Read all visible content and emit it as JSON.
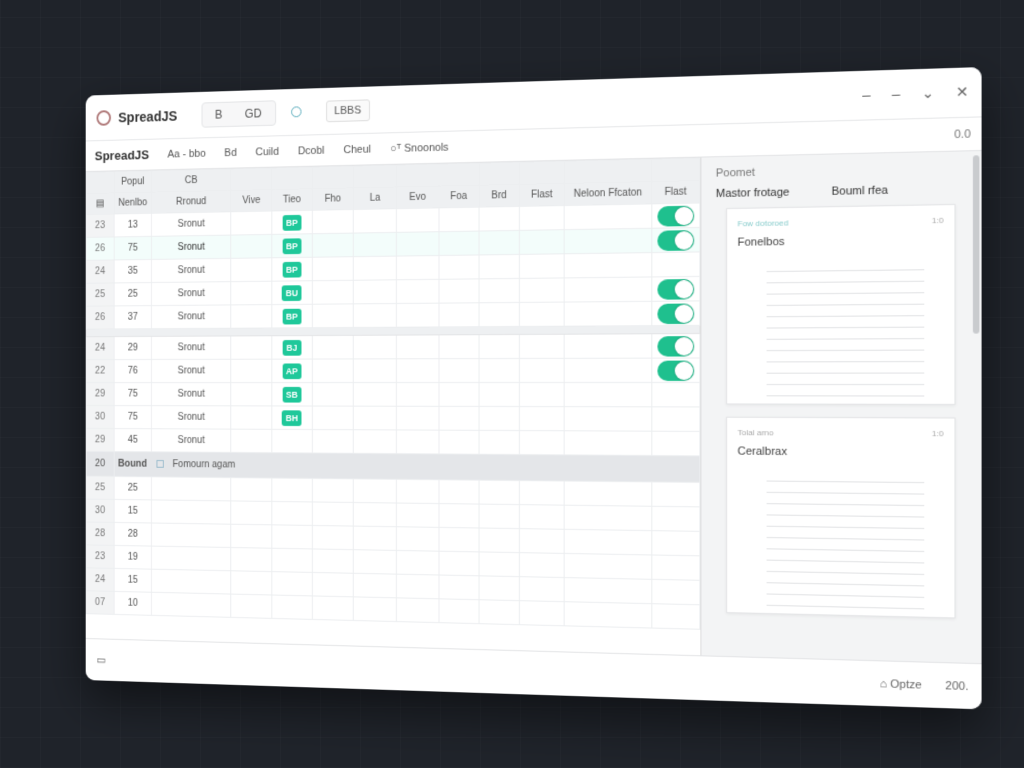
{
  "app": {
    "title": "SpreadJS",
    "toolbar": [
      "B",
      "GD"
    ],
    "button": "LBBS",
    "window_controls": [
      "–",
      "–",
      "⌄",
      "✕"
    ]
  },
  "menu": {
    "brand": "SpreadJS",
    "items": [
      "Aa - bbo",
      "Bd",
      "Cuild",
      "Dcobl",
      "Cheul",
      "○ᵀ Snoonols"
    ],
    "right": "0.0"
  },
  "grid": {
    "group_header": [
      "",
      "Popul",
      "CB"
    ],
    "columns": [
      "▤",
      "Nenlbo",
      "Rronud",
      "Vive",
      "Tieo",
      "Fho",
      "La",
      "Evo",
      "Foa",
      "Brd",
      "Flast",
      "Neloon Ffcaton",
      "Flast"
    ],
    "rows1": [
      {
        "n": "23",
        "a": "13",
        "b": "Sronut",
        "badge": "BP",
        "toggle": true
      },
      {
        "n": "26",
        "a": "75",
        "b": "Sronut",
        "badge": "BP",
        "toggle": true,
        "selected": true
      },
      {
        "n": "24",
        "a": "35",
        "b": "Sronut",
        "badge": "BP",
        "toggle": false
      },
      {
        "n": "25",
        "a": "25",
        "b": "Sronut",
        "badge": "BU",
        "toggle": true
      },
      {
        "n": "26",
        "a": "37",
        "b": "Sronut",
        "badge": "BP",
        "toggle": true
      }
    ],
    "rows2": [
      {
        "n": "24",
        "a": "29",
        "b": "Sronut",
        "badge": "BJ",
        "toggle": true
      },
      {
        "n": "22",
        "a": "76",
        "b": "Sronut",
        "badge": "AP",
        "toggle": true
      },
      {
        "n": "29",
        "a": "75",
        "b": "Sronut",
        "badge": "SB",
        "toggle": false
      },
      {
        "n": "30",
        "a": "75",
        "b": "Sronut",
        "badge": "BH",
        "toggle": false
      },
      {
        "n": "29",
        "a": "45",
        "b": "Sronut",
        "badge": "",
        "toggle": false
      }
    ],
    "group_row": {
      "n": "20",
      "label": "Bound",
      "text": "Fomourn agam"
    },
    "rows3": [
      {
        "n": "25",
        "a": "25"
      },
      {
        "n": "30",
        "a": "15"
      },
      {
        "n": "28",
        "a": "28"
      },
      {
        "n": "23",
        "a": "19"
      },
      {
        "n": "24",
        "a": "15"
      },
      {
        "n": "07",
        "a": "10"
      }
    ]
  },
  "panel": {
    "title": "Poomet",
    "tabs": [
      "Mastor frotage",
      "Bouml rfea"
    ],
    "cards": [
      {
        "small": "Fow dotoroed",
        "num": "1:0",
        "title": "Fonelbos"
      },
      {
        "small": "Tolal arno",
        "num": "1:0",
        "title": "Ceralbrax"
      }
    ]
  },
  "status": {
    "option": "Optze",
    "zoom": "200."
  },
  "colors": {
    "accent": "#1fc08e",
    "selection": "#2dd4a8"
  }
}
